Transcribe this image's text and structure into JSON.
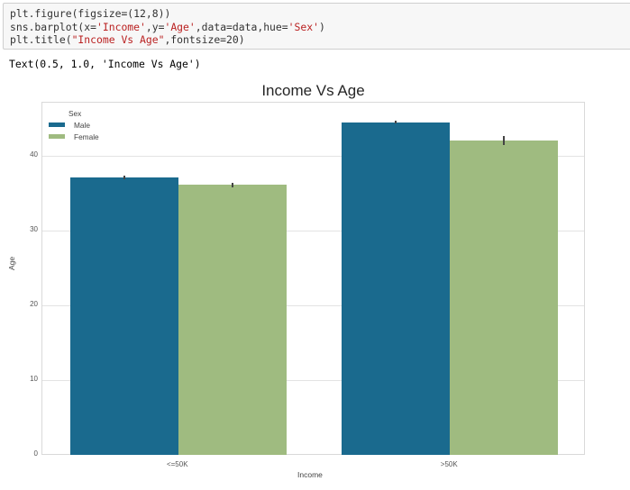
{
  "notebook": {
    "code_lines": [
      {
        "parts": [
          {
            "t": "plt.figure(figsize=(12,8))",
            "s": false
          }
        ]
      },
      {
        "parts": [
          {
            "t": "sns.barplot(x=",
            "s": false
          },
          {
            "t": "'Income'",
            "s": true
          },
          {
            "t": ",y=",
            "s": false
          },
          {
            "t": "'Age'",
            "s": true
          },
          {
            "t": ",data=data,hue=",
            "s": false
          },
          {
            "t": "'Sex'",
            "s": true
          },
          {
            "t": ")",
            "s": false
          }
        ]
      },
      {
        "parts": [
          {
            "t": "plt.title(",
            "s": false
          },
          {
            "t": "\"Income Vs Age\"",
            "s": true
          },
          {
            "t": ",fontsize=20)",
            "s": false
          }
        ]
      }
    ],
    "output_text": "Text(0.5, 1.0, 'Income Vs Age')"
  },
  "chart_data": {
    "type": "bar",
    "title": "Income Vs Age",
    "xlabel": "Income",
    "ylabel": "Age",
    "categories": [
      "<=50K",
      ">50K"
    ],
    "series": [
      {
        "name": "Male",
        "color": "#1a6a8e",
        "values": [
          37.2,
          44.6
        ],
        "ci": [
          0.2,
          0.2
        ]
      },
      {
        "name": "Female",
        "color": "#9fbb80",
        "values": [
          36.2,
          42.1
        ],
        "ci": [
          0.3,
          0.6
        ]
      }
    ],
    "yticks": [
      0,
      10,
      20,
      30,
      40
    ],
    "ylim": [
      0,
      47.2
    ],
    "grid": true,
    "legend": {
      "title": "Sex",
      "position": "upper left"
    }
  }
}
